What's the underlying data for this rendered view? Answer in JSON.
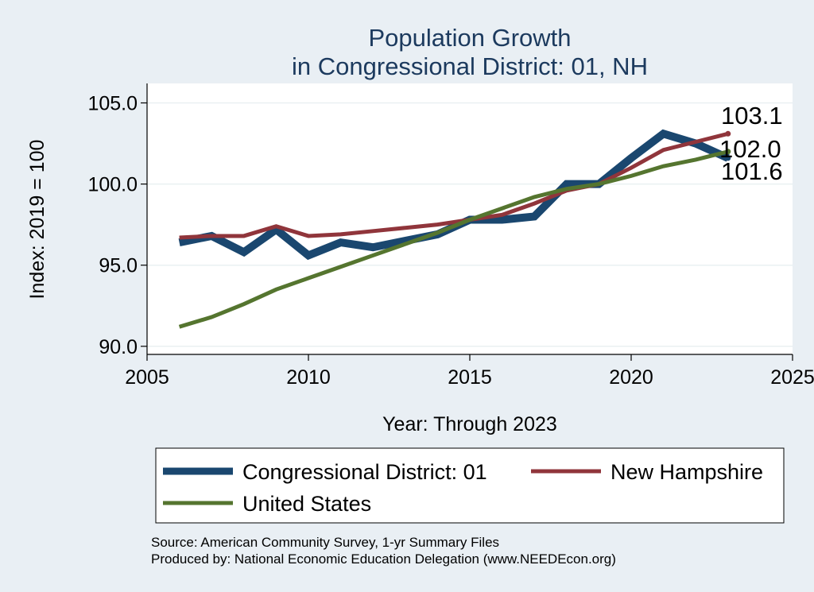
{
  "chart_data": {
    "type": "line",
    "title": [
      "Population Growth",
      "in Congressional District: 01, NH"
    ],
    "xlabel": "Year: Through 2023",
    "ylabel": "Index: 2019 = 100",
    "xlim": [
      2005,
      2025
    ],
    "ylim": [
      89.5,
      106.2
    ],
    "xticks": [
      "2005",
      "2010",
      "2015",
      "2020",
      "2025"
    ],
    "yticks": [
      "90.0",
      "95.0",
      "100.0",
      "105.0"
    ],
    "grid": "horizontal",
    "x": [
      2006,
      2007,
      2008,
      2009,
      2010,
      2011,
      2012,
      2013,
      2014,
      2015,
      2016,
      2017,
      2018,
      2019,
      2020,
      2021,
      2022,
      2023
    ],
    "series": [
      {
        "name": "Congressional District: 01",
        "color": "#1a476f",
        "values": [
          96.4,
          96.8,
          95.8,
          97.2,
          95.6,
          96.4,
          96.1,
          96.5,
          96.9,
          97.8,
          97.8,
          98.0,
          100.0,
          100.0,
          101.6,
          103.1,
          102.5,
          101.6
        ],
        "end_label": "101.6"
      },
      {
        "name": "New Hampshire",
        "color": "#90353b",
        "values": [
          96.7,
          96.8,
          96.8,
          97.4,
          96.8,
          96.9,
          97.1,
          97.3,
          97.5,
          97.8,
          98.1,
          98.8,
          99.6,
          100.0,
          101.0,
          102.1,
          102.6,
          103.1
        ],
        "end_label": "103.1"
      },
      {
        "name": "United States",
        "color": "#55752f",
        "values": [
          91.2,
          91.8,
          92.6,
          93.5,
          94.2,
          94.9,
          95.6,
          96.3,
          97.0,
          97.8,
          98.5,
          99.2,
          99.7,
          100.0,
          100.5,
          101.1,
          101.5,
          102.0
        ],
        "end_label": "102.0"
      }
    ],
    "legend": {
      "position": "bottom",
      "items": [
        "Congressional District: 01",
        "New Hampshire",
        "United States"
      ]
    },
    "notes": [
      "Source: American Community Survey, 1-yr Summary Files",
      "Produced by: National Economic Education Delegation (www.NEEDEcon.org)"
    ]
  }
}
